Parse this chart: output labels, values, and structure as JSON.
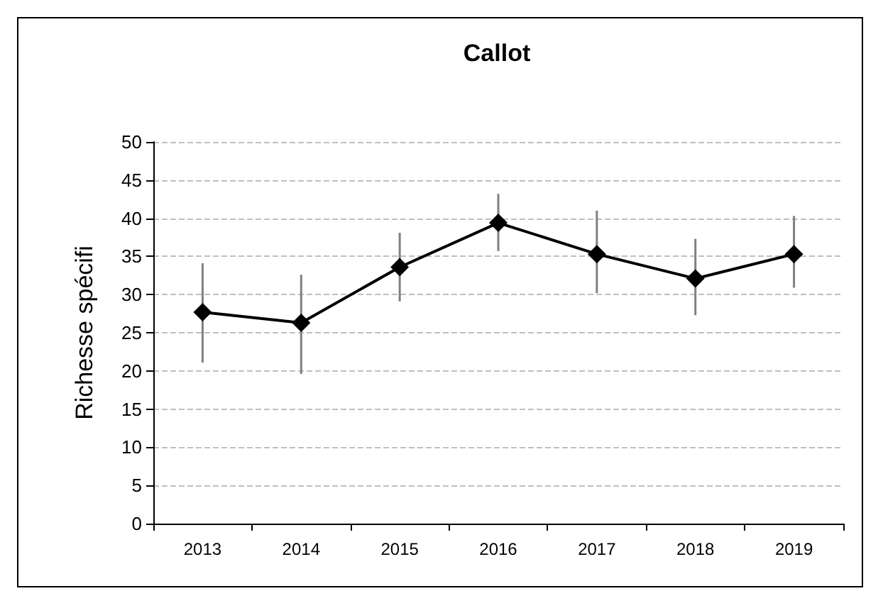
{
  "chart_data": {
    "type": "line",
    "title": "Callot",
    "ylabel": "Richesse spécifi",
    "categories": [
      "2013",
      "2014",
      "2015",
      "2016",
      "2017",
      "2018",
      "2019"
    ],
    "series": [
      {
        "color": "#000000",
        "values": [
          27.7,
          26.3,
          33.6,
          39.4,
          35.3,
          32.1,
          35.3
        ],
        "errors": [
          [
            21.1,
            34.1
          ],
          [
            19.6,
            32.6
          ],
          [
            29.1,
            38.1
          ],
          [
            35.7,
            43.2
          ],
          [
            30.2,
            41.0
          ],
          [
            27.3,
            37.3
          ],
          [
            30.9,
            40.3
          ]
        ]
      }
    ],
    "ylim": [
      0,
      50
    ],
    "yticks": [
      0,
      5,
      10,
      15,
      20,
      25,
      30,
      35,
      40,
      45,
      50
    ],
    "grid": "y",
    "marker": "diamond",
    "line_style": "solid"
  }
}
